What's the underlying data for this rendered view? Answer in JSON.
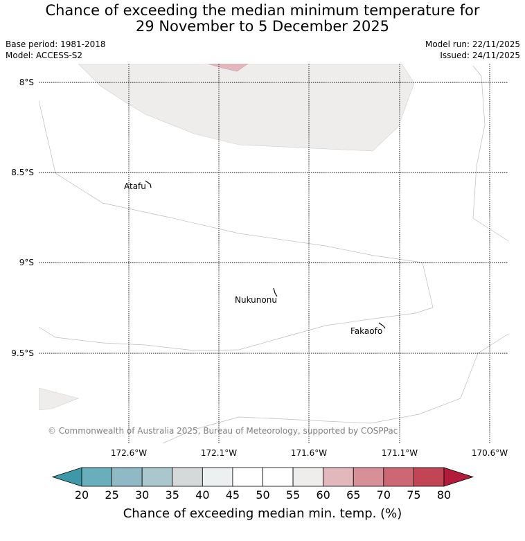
{
  "title": {
    "line1": "Chance of exceeding the median minimum temperature for",
    "line2": "29 November to 5 December 2025"
  },
  "meta": {
    "base_period": "Base period: 1981-2018",
    "model": "Model: ACCESS-S2",
    "model_run": "Model run: 22/11/2025",
    "issued": "Issued: 24/11/2025"
  },
  "map": {
    "lat_labels": [
      "8°S",
      "8.5°S",
      "9°S",
      "9.5°S"
    ],
    "lon_labels": [
      "172.6°W",
      "172.1°W",
      "171.6°W",
      "171.1°W",
      "170.6°W"
    ],
    "places": [
      "Atafu",
      "Nukunonu",
      "Fakaofo"
    ],
    "copyright": "© Commonwealth of Australia 2025, Bureau of Meteorology, supported by COSPPac",
    "colors": {
      "region_45_55": "#eeedec",
      "region_60_65": "#e3b8bd",
      "boundary": "#bbbbbb",
      "grid": "#000000"
    }
  },
  "colorbar": {
    "label": "Chance of exceeding median min. temp. (%)",
    "ticks": [
      "20",
      "25",
      "30",
      "35",
      "40",
      "45",
      "50",
      "55",
      "60",
      "65",
      "70",
      "75",
      "80"
    ],
    "colors": [
      "#3f98a7",
      "#68aebb",
      "#8fbac5",
      "#a9c7cc",
      "#d6d9da",
      "#ecf0f1",
      "#ffffff",
      "#ffffff",
      "#eeedec",
      "#e3b8bd",
      "#d78f98",
      "#cc6774",
      "#c24556",
      "#b01c3a"
    ]
  }
}
